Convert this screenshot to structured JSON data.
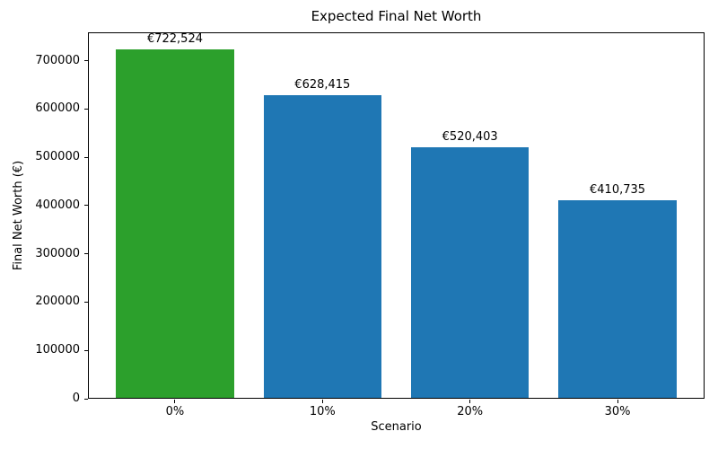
{
  "chart_data": {
    "type": "bar",
    "title": "Expected Final Net Worth",
    "xlabel": "Scenario",
    "ylabel": "Final Net Worth (€)",
    "categories": [
      "0%",
      "10%",
      "20%",
      "30%"
    ],
    "values": [
      722524,
      628415,
      520403,
      410735
    ],
    "bar_labels": [
      "€722,524",
      "€628,415",
      "€520,403",
      "€410,735"
    ],
    "bar_colors": [
      "#2ca02c",
      "#1f77b4",
      "#1f77b4",
      "#1f77b4"
    ],
    "ylim": [
      0,
      758650
    ],
    "yticks": [
      0,
      100000,
      200000,
      300000,
      400000,
      500000,
      600000,
      700000
    ],
    "ytick_labels": [
      "0",
      "100000",
      "200000",
      "300000",
      "400000",
      "500000",
      "600000",
      "700000"
    ],
    "grid": false,
    "legend_position": "none",
    "highlight_color": "#2ca02c",
    "default_bar_color": "#1f77b4"
  }
}
